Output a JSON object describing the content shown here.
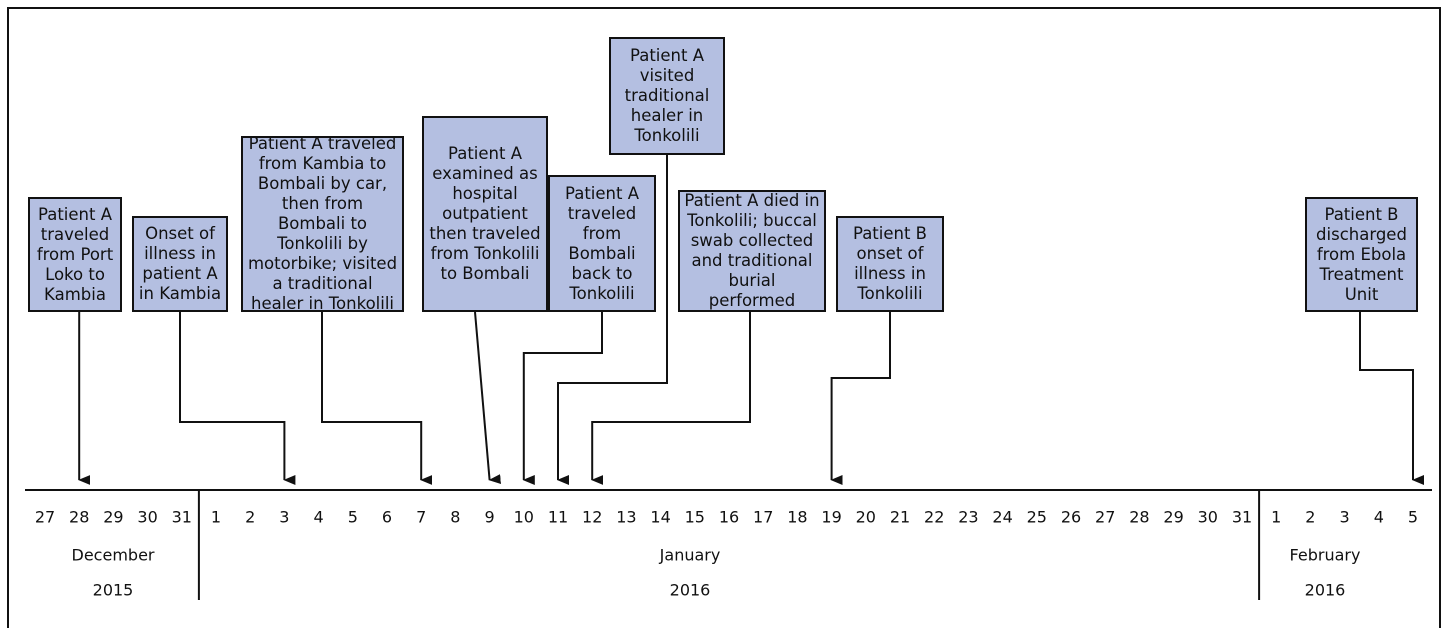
{
  "events": [
    {
      "label": "Patient A traveled from Port Loko to Kambia"
    },
    {
      "label": "Onset of illness in patient A in Kambia"
    },
    {
      "label": "Patient A traveled from Kambia to Bombali by car, then from Bombali to Tonkolili by motorbike; visited a traditional healer in Tonkolili"
    },
    {
      "label": "Patient A examined as hospital outpatient then traveled from Tonkolili to Bombali"
    },
    {
      "label": "Patient A traveled from Bombali back to Tonkolili"
    },
    {
      "label": "Patient A visited traditional healer in Tonkolili"
    },
    {
      "label": "Patient A died in Tonkolili; buccal swab collected and traditional burial performed"
    },
    {
      "label": "Patient B onset of illness in Tonkolili"
    },
    {
      "label": "Patient B discharged from Ebola Treatment Unit"
    }
  ],
  "timeline": {
    "days": [
      "27",
      "28",
      "29",
      "30",
      "31",
      "1",
      "2",
      "3",
      "4",
      "5",
      "6",
      "7",
      "8",
      "9",
      "10",
      "11",
      "12",
      "13",
      "14",
      "15",
      "16",
      "17",
      "18",
      "19",
      "20",
      "21",
      "22",
      "23",
      "24",
      "25",
      "26",
      "27",
      "28",
      "29",
      "30",
      "31",
      "1",
      "2",
      "3",
      "4",
      "5"
    ],
    "months": [
      {
        "name": "December",
        "year": "2015"
      },
      {
        "name": "January",
        "year": "2016"
      },
      {
        "name": "February",
        "year": "2016"
      }
    ]
  }
}
